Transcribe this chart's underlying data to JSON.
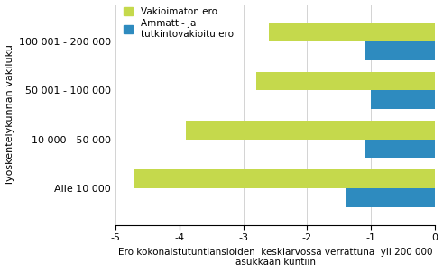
{
  "categories": [
    "Alle 10 000",
    "10 000 - 50 000",
    "50 001 - 100 000",
    "100 001 - 200 000"
  ],
  "vakioimaton": [
    -4.7,
    -3.9,
    -2.8,
    -2.6
  ],
  "ammatti": [
    -1.4,
    -1.1,
    -1.0,
    -1.1
  ],
  "color_vakioimaton": "#c5d94c",
  "color_ammatti": "#2e8bbf",
  "xlabel": "Ero kokonaistutuntiansioiden  keskiarvossa verrattuna  yli 200 000\nasukkaan kuntiin",
  "ylabel": "Työskentelykunnan väkiluku",
  "legend_vakioimaton": "Vakioimaton ero",
  "legend_ammatti": "Ammatti- ja\ntutkintovakioitu ero",
  "xlim": [
    -5,
    0
  ],
  "xticks": [
    -5,
    -4,
    -3,
    -2,
    -1,
    0
  ],
  "bar_height": 0.38,
  "label_fontsize": 7.5,
  "tick_fontsize": 8,
  "ylabel_fontsize": 8
}
